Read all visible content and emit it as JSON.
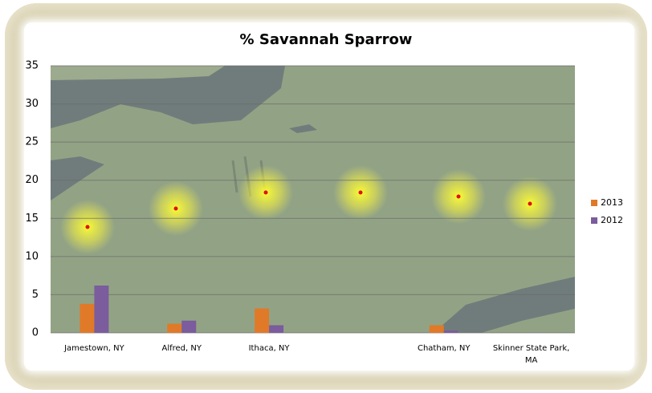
{
  "chart_data": {
    "type": "bar",
    "title": "% Savannah Sparrow",
    "categories": [
      "Jamestown, NY",
      "Alfred, NY",
      "Ithaca, NY",
      null,
      "Chatham, NY",
      "Skinner State Park, MA"
    ],
    "series": [
      {
        "name": "2013",
        "color": "#e07a28",
        "values": [
          3.8,
          1.2,
          3.2,
          0,
          1.0,
          0
        ]
      },
      {
        "name": "2012",
        "color": "#7b5c9c",
        "values": [
          6.2,
          1.6,
          1.0,
          0,
          0.3,
          0
        ]
      }
    ],
    "ylim": [
      0,
      35
    ],
    "yticks": [
      0,
      5,
      10,
      15,
      20,
      25,
      30,
      35
    ],
    "grid": true,
    "legend": "right"
  }
}
